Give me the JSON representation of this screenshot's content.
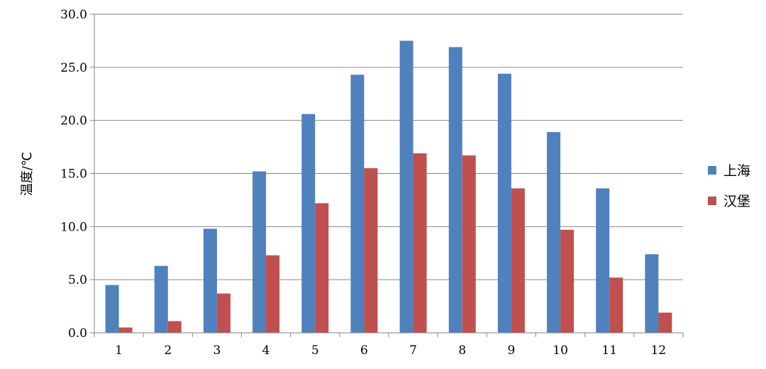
{
  "chart_data": {
    "type": "bar",
    "categories": [
      "1",
      "2",
      "3",
      "4",
      "5",
      "6",
      "7",
      "8",
      "9",
      "10",
      "11",
      "12"
    ],
    "series": [
      {
        "name": "上海",
        "color": "#4F81BD",
        "values": [
          4.5,
          6.3,
          9.8,
          15.2,
          20.6,
          24.3,
          27.5,
          26.9,
          24.4,
          18.9,
          13.6,
          7.4
        ]
      },
      {
        "name": "汉堡",
        "color": "#C0504D",
        "values": [
          0.5,
          1.1,
          3.7,
          7.3,
          12.2,
          15.5,
          16.9,
          16.7,
          13.6,
          9.7,
          5.2,
          1.9
        ]
      }
    ],
    "ylabel": "温度/℃",
    "ylim": [
      0,
      30
    ],
    "yticks": [
      "0.0",
      "5.0",
      "10.0",
      "15.0",
      "20.0",
      "25.0",
      "30.0"
    ],
    "grid": true,
    "legend": "right"
  }
}
